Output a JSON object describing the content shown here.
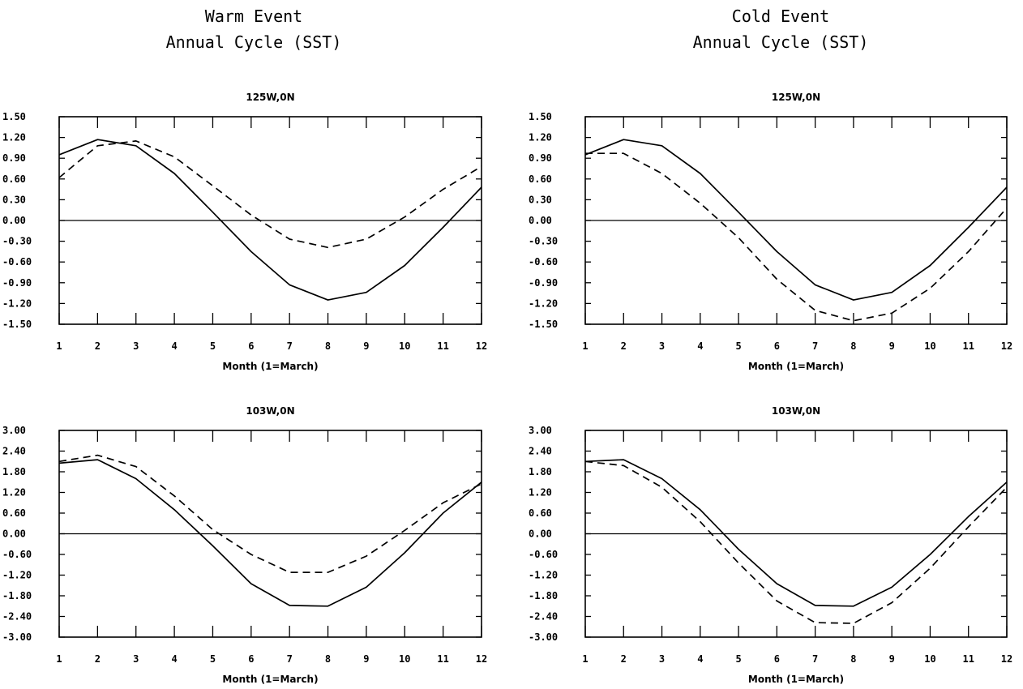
{
  "figure": {
    "left_heading": {
      "line1": "Warm Event",
      "line2": "Annual Cycle (SST)"
    },
    "right_heading": {
      "line1": "Cold Event",
      "line2": "Annual Cycle (SST)"
    }
  },
  "chart_data": [
    {
      "type": "line",
      "title": "125W,0N",
      "xlabel": "Month (1=March)",
      "ylabel": "",
      "x": [
        1,
        2,
        3,
        4,
        5,
        6,
        7,
        8,
        9,
        10,
        11,
        12
      ],
      "xlim": [
        1,
        12
      ],
      "ylim": [
        -1.5,
        1.5
      ],
      "yticks": [
        "1.50",
        "1.20",
        "0.90",
        "0.60",
        "0.30",
        "0.00",
        "-0.30",
        "-0.60",
        "-0.90",
        "-1.20",
        "-1.50"
      ],
      "xticks": [
        "1",
        "2",
        "3",
        "4",
        "5",
        "6",
        "7",
        "8",
        "9",
        "10",
        "11",
        "12"
      ],
      "zero_line": true,
      "series": [
        {
          "style": "solid",
          "values": [
            0.95,
            1.17,
            1.08,
            0.68,
            0.12,
            -0.45,
            -0.93,
            -1.15,
            -1.04,
            -0.65,
            -0.1,
            0.48
          ]
        },
        {
          "style": "dashed",
          "values": [
            0.62,
            1.08,
            1.15,
            0.92,
            0.5,
            0.08,
            -0.27,
            -0.39,
            -0.27,
            0.05,
            0.45,
            0.78
          ]
        }
      ]
    },
    {
      "type": "line",
      "title": "125W,0N",
      "xlabel": "Month (1=March)",
      "ylabel": "",
      "x": [
        1,
        2,
        3,
        4,
        5,
        6,
        7,
        8,
        9,
        10,
        11,
        12
      ],
      "xlim": [
        1,
        12
      ],
      "ylim": [
        -1.5,
        1.5
      ],
      "yticks": [
        "1.50",
        "1.20",
        "0.90",
        "0.60",
        "0.30",
        "0.00",
        "-0.30",
        "-0.60",
        "-0.90",
        "-1.20",
        "-1.50"
      ],
      "xticks": [
        "1",
        "2",
        "3",
        "4",
        "5",
        "6",
        "7",
        "8",
        "9",
        "10",
        "11",
        "12"
      ],
      "zero_line": true,
      "series": [
        {
          "style": "solid",
          "values": [
            0.95,
            1.17,
            1.08,
            0.68,
            0.12,
            -0.45,
            -0.93,
            -1.15,
            -1.04,
            -0.65,
            -0.1,
            0.48
          ]
        },
        {
          "style": "dashed",
          "values": [
            0.97,
            0.97,
            0.68,
            0.25,
            -0.25,
            -0.85,
            -1.3,
            -1.45,
            -1.34,
            -0.98,
            -0.45,
            0.18
          ]
        }
      ]
    },
    {
      "type": "line",
      "title": "103W,0N",
      "xlabel": "Month (1=March)",
      "ylabel": "",
      "x": [
        1,
        2,
        3,
        4,
        5,
        6,
        7,
        8,
        9,
        10,
        11,
        12
      ],
      "xlim": [
        1,
        12
      ],
      "ylim": [
        -3.0,
        3.0
      ],
      "yticks": [
        "3.00",
        "2.40",
        "1.80",
        "1.20",
        "0.60",
        "0.00",
        "-0.60",
        "-1.20",
        "-1.80",
        "-2.40",
        "-3.00"
      ],
      "xticks": [
        "1",
        "2",
        "3",
        "4",
        "5",
        "6",
        "7",
        "8",
        "9",
        "10",
        "11",
        "12"
      ],
      "zero_line": true,
      "series": [
        {
          "style": "solid",
          "values": [
            2.05,
            2.15,
            1.6,
            0.7,
            -0.35,
            -1.45,
            -2.08,
            -2.1,
            -1.55,
            -0.55,
            0.6,
            1.5
          ]
        },
        {
          "style": "dashed",
          "values": [
            2.1,
            2.28,
            1.95,
            1.1,
            0.12,
            -0.6,
            -1.12,
            -1.12,
            -0.65,
            0.1,
            0.9,
            1.45
          ]
        }
      ]
    },
    {
      "type": "line",
      "title": "103W,0N",
      "xlabel": "Month (1=March)",
      "ylabel": "",
      "x": [
        1,
        2,
        3,
        4,
        5,
        6,
        7,
        8,
        9,
        10,
        11,
        12
      ],
      "xlim": [
        1,
        12
      ],
      "ylim": [
        -3.0,
        3.0
      ],
      "yticks": [
        "3.00",
        "2.40",
        "1.80",
        "1.20",
        "0.60",
        "0.00",
        "-0.60",
        "-1.20",
        "-1.80",
        "-2.40",
        "-3.00"
      ],
      "xticks": [
        "1",
        "2",
        "3",
        "4",
        "5",
        "6",
        "7",
        "8",
        "9",
        "10",
        "11",
        "12"
      ],
      "zero_line": true,
      "series": [
        {
          "style": "solid",
          "values": [
            2.1,
            2.15,
            1.6,
            0.7,
            -0.45,
            -1.45,
            -2.08,
            -2.1,
            -1.55,
            -0.6,
            0.5,
            1.5
          ]
        },
        {
          "style": "dashed",
          "values": [
            2.1,
            1.98,
            1.35,
            0.35,
            -0.85,
            -1.95,
            -2.58,
            -2.6,
            -2.0,
            -1.0,
            0.2,
            1.35
          ]
        }
      ]
    }
  ]
}
